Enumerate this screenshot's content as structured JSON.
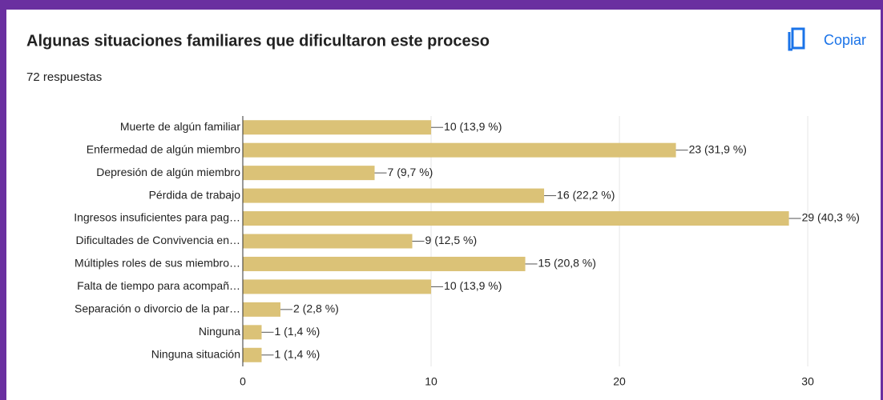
{
  "actions": {
    "copy": "Copiar"
  },
  "chart_data": {
    "type": "hbar",
    "title": "Algunas situaciones familiares que dificultaron este proceso",
    "subtitle": "72 respuestas",
    "categories": [
      "Muerte de algún familiar",
      "Enfermedad de algún miembro",
      "Depresión de algún miembro",
      "Pérdida de trabajo",
      "Ingresos insuficientes para pag…",
      "Dificultades de Convivencia en…",
      "Múltiples roles de sus miembro…",
      "Falta de tiempo para acompañ…",
      "Separación o divorcio de la par…",
      "Ninguna",
      "Ninguna situación"
    ],
    "values": [
      10,
      23,
      7,
      16,
      29,
      9,
      15,
      10,
      2,
      1,
      1
    ],
    "value_labels": [
      "10 (13,9 %)",
      "23 (31,9 %)",
      "7 (9,7 %)",
      "16 (22,2 %)",
      "29 (40,3 %)",
      "9 (12,5 %)",
      "15 (20,8 %)",
      "10 (13,9 %)",
      "2 (2,8 %)",
      "1 (1,4 %)",
      "1 (1,4 %)"
    ],
    "color": "#dbc277",
    "xlim": [
      0,
      31.4
    ],
    "xticks": [
      0,
      10,
      20,
      30
    ],
    "grid": true
  }
}
